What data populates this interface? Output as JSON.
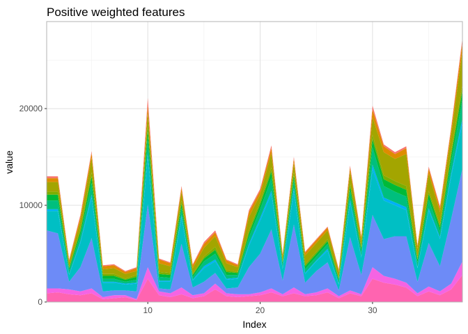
{
  "chart_data": {
    "type": "area",
    "stacked": true,
    "title": "Positive weighted features",
    "xlabel": "Index",
    "ylabel": "value",
    "xlim": [
      1,
      38
    ],
    "ylim": [
      0,
      29000
    ],
    "x_ticks": [
      10,
      20,
      30
    ],
    "y_ticks": [
      0,
      10000,
      20000
    ],
    "x_tick_labels": [
      "10",
      "20",
      "30"
    ],
    "y_tick_labels": [
      "0",
      "10000",
      "20000"
    ],
    "grid": true,
    "legend": "none",
    "x": [
      1,
      2,
      3,
      4,
      5,
      6,
      7,
      8,
      9,
      10,
      11,
      12,
      13,
      14,
      15,
      16,
      17,
      18,
      19,
      20,
      21,
      22,
      23,
      24,
      25,
      26,
      27,
      28,
      29,
      30,
      31,
      32,
      33,
      34,
      35,
      36,
      37,
      38
    ],
    "series": [
      {
        "color": "#ff64b0",
        "values": [
          900,
          1000,
          800,
          700,
          900,
          300,
          400,
          500,
          200,
          2400,
          700,
          500,
          800,
          400,
          600,
          1300,
          600,
          500,
          600,
          700,
          1000,
          600,
          900,
          600,
          700,
          1000,
          400,
          900,
          600,
          2400,
          2000,
          1800,
          1500,
          600,
          1100,
          700,
          1300,
          2800
        ]
      },
      {
        "color": "#f564e3",
        "values": [
          500,
          400,
          500,
          400,
          500,
          200,
          300,
          200,
          100,
          1200,
          400,
          400,
          700,
          300,
          300,
          600,
          300,
          300,
          200,
          300,
          400,
          200,
          600,
          200,
          300,
          400,
          200,
          300,
          200,
          1200,
          700,
          600,
          500,
          300,
          500,
          400,
          600,
          1400
        ]
      },
      {
        "color": "#6d8bf7",
        "values": [
          6000,
          5700,
          800,
          2500,
          5200,
          600,
          500,
          500,
          800,
          6500,
          300,
          400,
          4500,
          800,
          1200,
          1100,
          500,
          700,
          2800,
          4000,
          6100,
          1400,
          6500,
          1200,
          2200,
          2700,
          600,
          5500,
          2000,
          5400,
          3800,
          4400,
          4800,
          1200,
          4500,
          2600,
          6700,
          9600
        ]
      },
      {
        "color": "#00bfc4",
        "values": [
          2000,
          2300,
          700,
          2500,
          4200,
          900,
          800,
          600,
          800,
          5000,
          700,
          800,
          2800,
          700,
          1400,
          1200,
          900,
          900,
          2200,
          3400,
          3700,
          1200,
          3500,
          900,
          1000,
          1200,
          600,
          3600,
          1800,
          4700,
          4000,
          3200,
          2700,
          1400,
          3400,
          2800,
          4400,
          4700
        ]
      },
      {
        "color": "#00b0f6",
        "values": [
          200,
          200,
          100,
          200,
          300,
          100,
          100,
          100,
          100,
          400,
          100,
          100,
          200,
          100,
          200,
          200,
          100,
          100,
          200,
          300,
          300,
          100,
          300,
          100,
          100,
          200,
          100,
          300,
          100,
          500,
          300,
          300,
          300,
          100,
          200,
          200,
          300,
          500
        ]
      },
      {
        "color": "#00bf7d",
        "values": [
          900,
          900,
          400,
          600,
          1200,
          300,
          300,
          200,
          300,
          1500,
          400,
          300,
          700,
          300,
          500,
          600,
          400,
          300,
          700,
          900,
          1300,
          400,
          800,
          400,
          400,
          500,
          300,
          900,
          500,
          1800,
          1200,
          1100,
          1100,
          500,
          900,
          600,
          1200,
          2000
        ]
      },
      {
        "color": "#00ba38",
        "values": [
          600,
          600,
          200,
          400,
          700,
          300,
          300,
          200,
          300,
          900,
          300,
          300,
          500,
          200,
          300,
          400,
          300,
          200,
          400,
          500,
          700,
          200,
          500,
          300,
          300,
          300,
          200,
          500,
          300,
          800,
          700,
          700,
          700,
          300,
          600,
          400,
          700,
          900
        ]
      },
      {
        "color": "#7cae00",
        "values": [
          300,
          300,
          100,
          300,
          400,
          200,
          200,
          100,
          200,
          500,
          200,
          200,
          300,
          100,
          200,
          300,
          200,
          100,
          300,
          300,
          400,
          100,
          300,
          200,
          200,
          200,
          100,
          300,
          200,
          500,
          400,
          400,
          400,
          200,
          300,
          300,
          400,
          600
        ]
      },
      {
        "color": "#a3a500",
        "values": [
          1000,
          1000,
          500,
          800,
          1500,
          500,
          600,
          500,
          400,
          1300,
          900,
          700,
          900,
          600,
          900,
          1100,
          700,
          500,
          1400,
          700,
          1500,
          500,
          1000,
          900,
          900,
          900,
          600,
          1200,
          700,
          1800,
          2400,
          2300,
          3300,
          900,
          1800,
          1300,
          1700,
          3500
        ]
      },
      {
        "color": "#de8c00",
        "values": [
          400,
          400,
          200,
          400,
          500,
          300,
          300,
          200,
          300,
          600,
          400,
          300,
          400,
          300,
          400,
          400,
          300,
          200,
          500,
          400,
          500,
          200,
          400,
          300,
          300,
          300,
          200,
          400,
          300,
          800,
          600,
          500,
          600,
          300,
          500,
          400,
          600,
          900
        ]
      },
      {
        "color": "#f8766d",
        "values": [
          200,
          200,
          100,
          200,
          200,
          100,
          100,
          100,
          100,
          800,
          100,
          100,
          200,
          100,
          200,
          200,
          100,
          100,
          200,
          200,
          300,
          100,
          200,
          100,
          100,
          100,
          100,
          200,
          100,
          400,
          200,
          200,
          200,
          100,
          200,
          200,
          200,
          400
        ]
      }
    ]
  }
}
